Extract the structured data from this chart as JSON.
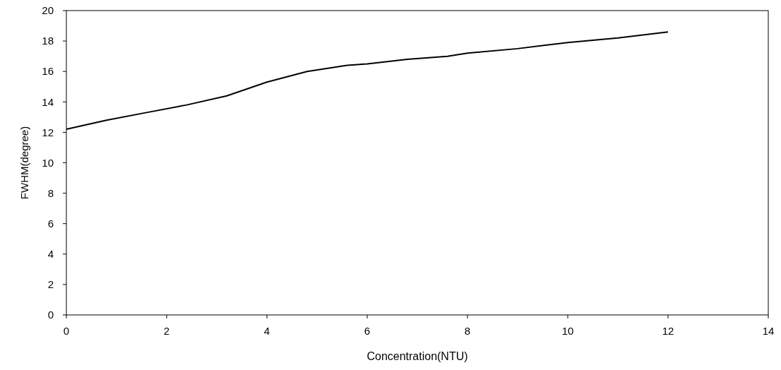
{
  "chart_data": {
    "type": "line",
    "xlabel": "Concentration(NTU)",
    "ylabel": "FWHM(degree)",
    "x": [
      0,
      0.8,
      1.6,
      2.4,
      3.2,
      4,
      4.8,
      5.6,
      6,
      6.8,
      7.6,
      8,
      9,
      10,
      11,
      12
    ],
    "series": [
      {
        "color": "#000000",
        "values": [
          12.2,
          12.8,
          13.3,
          13.8,
          14.4,
          15.3,
          16.0,
          16.4,
          16.5,
          16.8,
          17.0,
          17.2,
          17.5,
          17.9,
          18.2,
          18.6
        ]
      }
    ],
    "xlim": [
      0,
      14
    ],
    "xticks": [
      0,
      2,
      4,
      6,
      8,
      10,
      12,
      14
    ],
    "ylim": [
      0,
      20
    ],
    "yticks": [
      0,
      2,
      4,
      6,
      8,
      10,
      12,
      14,
      16,
      18,
      20
    ],
    "grid": false,
    "marker": "none",
    "line_style": "solid"
  }
}
